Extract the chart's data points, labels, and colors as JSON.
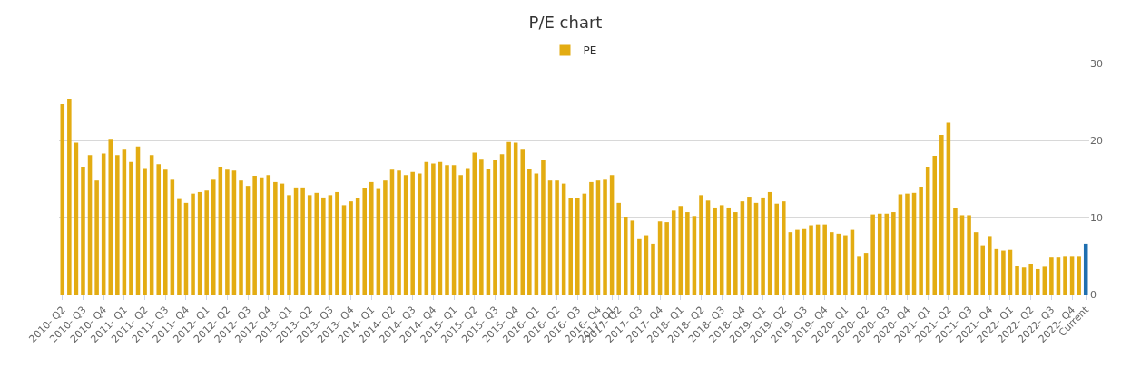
{
  "chart_data": {
    "type": "bar",
    "title": "P/E chart",
    "categories": [
      "2010- Q2",
      null,
      null,
      "2010- Q3",
      null,
      null,
      "2010- Q4",
      null,
      null,
      "2011- Q1",
      null,
      null,
      "2011- Q2",
      null,
      null,
      "2011- Q3",
      null,
      null,
      "2011- Q4",
      null,
      null,
      "2012- Q1",
      null,
      null,
      "2012- Q2",
      null,
      null,
      "2012- Q3",
      null,
      null,
      "2012- Q4",
      null,
      null,
      "2013- Q1",
      null,
      null,
      "2013- Q2",
      null,
      null,
      "2013- Q3",
      null,
      null,
      "2013- Q4",
      null,
      null,
      "2014- Q1",
      null,
      null,
      "2014- Q2",
      null,
      null,
      "2014- Q3",
      null,
      null,
      "2014- Q4",
      null,
      null,
      "2015- Q1",
      null,
      null,
      "2015- Q2",
      null,
      null,
      "2015- Q3",
      null,
      null,
      "2015- Q4",
      null,
      null,
      "2016- Q1",
      null,
      null,
      "2016- Q2",
      null,
      null,
      "2016- Q3",
      null,
      null,
      "2016- Q4",
      null,
      "2017- Q1",
      "2017- Q2",
      null,
      null,
      "2017- Q3",
      null,
      null,
      "2017- Q4",
      null,
      null,
      "2018- Q1",
      null,
      null,
      "2018- Q2",
      null,
      null,
      "2018- Q3",
      null,
      null,
      "2018- Q4",
      null,
      null,
      "2019- Q1",
      null,
      null,
      "2019- Q2",
      null,
      null,
      "2019- Q3",
      null,
      null,
      "2019- Q4",
      null,
      null,
      "2020- Q1",
      null,
      null,
      "2020- Q2",
      null,
      null,
      "2020- Q3",
      null,
      null,
      "2020- Q4",
      null,
      null,
      "2021- Q1",
      null,
      null,
      "2021- Q2",
      null,
      null,
      "2021- Q3",
      null,
      null,
      "2021- Q4",
      null,
      null,
      "2022- Q1",
      null,
      null,
      "2022- Q2",
      null,
      null,
      "2022- Q3",
      null,
      null,
      "2022- Q4",
      null,
      "Current"
    ],
    "series": [
      {
        "name": "PE",
        "colors": [
          "#e3ac12",
          "#e3ac12",
          "#e3ac12",
          "#e3ac12",
          "#e3ac12",
          "#e3ac12",
          "#e3ac12",
          "#e3ac12",
          "#e3ac12",
          "#e3ac12",
          "#e3ac12",
          "#e3ac12",
          "#e3ac12",
          "#e3ac12",
          "#e3ac12",
          "#e3ac12",
          "#e3ac12",
          "#e3ac12",
          "#e3ac12",
          "#e3ac12",
          "#e3ac12",
          "#e3ac12",
          "#e3ac12",
          "#e3ac12",
          "#e3ac12",
          "#e3ac12",
          "#e3ac12",
          "#e3ac12",
          "#e3ac12",
          "#e3ac12",
          "#e3ac12",
          "#e3ac12",
          "#e3ac12",
          "#e3ac12",
          "#e3ac12",
          "#e3ac12",
          "#e3ac12",
          "#e3ac12",
          "#e3ac12",
          "#e3ac12",
          "#e3ac12",
          "#e3ac12",
          "#e3ac12",
          "#e3ac12",
          "#e3ac12",
          "#e3ac12",
          "#e3ac12",
          "#e3ac12",
          "#e3ac12",
          "#e3ac12",
          "#e3ac12",
          "#e3ac12",
          "#e3ac12",
          "#e3ac12",
          "#e3ac12",
          "#e3ac12",
          "#e3ac12",
          "#e3ac12",
          "#e3ac12",
          "#e3ac12",
          "#e3ac12",
          "#e3ac12",
          "#e3ac12",
          "#e3ac12",
          "#e3ac12",
          "#e3ac12",
          "#e3ac12",
          "#e3ac12",
          "#e3ac12",
          "#e3ac12",
          "#e3ac12",
          "#e3ac12",
          "#e3ac12",
          "#e3ac12",
          "#e3ac12",
          "#e3ac12",
          "#e3ac12",
          "#e3ac12",
          "#e3ac12",
          "#e3ac12",
          "#e3ac12",
          "#e3ac12",
          "#e3ac12",
          "#e3ac12",
          "#e3ac12",
          "#e3ac12",
          "#e3ac12",
          "#e3ac12",
          "#e3ac12",
          "#e3ac12",
          "#e3ac12",
          "#e3ac12",
          "#e3ac12",
          "#e3ac12",
          "#e3ac12",
          "#e3ac12",
          "#e3ac12",
          "#e3ac12",
          "#e3ac12",
          "#e3ac12",
          "#e3ac12",
          "#e3ac12",
          "#e3ac12",
          "#e3ac12",
          "#e3ac12",
          "#e3ac12",
          "#e3ac12",
          "#e3ac12",
          "#e3ac12",
          "#e3ac12",
          "#e3ac12",
          "#e3ac12",
          "#e3ac12",
          "#e3ac12",
          "#e3ac12",
          "#e3ac12",
          "#e3ac12",
          "#e3ac12",
          "#e3ac12",
          "#e3ac12",
          "#e3ac12",
          "#e3ac12",
          "#e3ac12",
          "#e3ac12",
          "#e3ac12",
          "#e3ac12",
          "#e3ac12",
          "#e3ac12",
          "#e3ac12",
          "#e3ac12",
          "#e3ac12",
          "#e3ac12",
          "#e3ac12",
          "#e3ac12",
          "#e3ac12",
          "#e3ac12",
          "#e3ac12",
          "#e3ac12",
          "#e3ac12",
          "#e3ac12",
          "#e3ac12",
          "#e3ac12",
          "#e3ac12",
          "#e3ac12",
          "#e3ac12",
          "#e3ac12",
          "#e3ac12",
          "#e3ac12",
          "#e3ac12",
          "#1f6fb0"
        ],
        "values": [
          24.7,
          25.4,
          19.7,
          16.6,
          18.1,
          14.8,
          18.3,
          20.2,
          18.1,
          18.9,
          17.2,
          19.2,
          16.4,
          18.1,
          16.9,
          16.2,
          14.9,
          12.4,
          11.9,
          13.1,
          13.3,
          13.5,
          14.9,
          16.6,
          16.2,
          16.1,
          14.8,
          14.1,
          15.4,
          15.2,
          15.5,
          14.6,
          14.4,
          12.9,
          13.9,
          13.9,
          12.9,
          13.2,
          12.6,
          12.9,
          13.3,
          11.6,
          12.1,
          12.5,
          13.8,
          14.6,
          13.7,
          14.8,
          16.2,
          16.1,
          15.5,
          15.9,
          15.7,
          17.2,
          17.0,
          17.2,
          16.8,
          16.8,
          15.5,
          16.4,
          18.4,
          17.5,
          16.3,
          17.4,
          18.2,
          19.8,
          19.7,
          18.9,
          16.3,
          15.7,
          17.4,
          14.8,
          14.8,
          14.4,
          12.5,
          12.5,
          13.1,
          14.6,
          14.8,
          14.9,
          15.5,
          11.9,
          10.0,
          9.6,
          7.2,
          7.7,
          6.6,
          9.5,
          9.4,
          10.9,
          11.5,
          10.7,
          10.2,
          12.9,
          12.2,
          11.3,
          11.6,
          11.3,
          10.7,
          12.1,
          12.7,
          11.9,
          12.6,
          13.3,
          11.8,
          12.1,
          8.1,
          8.4,
          8.5,
          9.0,
          9.1,
          9.1,
          8.1,
          7.9,
          7.7,
          8.4,
          4.9,
          5.4,
          10.4,
          10.5,
          10.5,
          10.7,
          13.0,
          13.1,
          13.2,
          14.0,
          16.6,
          18.0,
          20.7,
          22.3,
          11.2,
          10.3,
          10.3,
          8.1,
          6.4,
          7.6,
          5.9,
          5.7,
          5.8,
          3.7,
          3.5,
          4.0,
          3.3,
          3.6,
          4.8,
          4.8,
          4.9,
          4.9,
          4.9,
          6.6
        ]
      }
    ],
    "ylim": [
      0,
      30
    ],
    "yticks": [
      0,
      10,
      20,
      30
    ],
    "grid": "y",
    "legend": "top"
  }
}
